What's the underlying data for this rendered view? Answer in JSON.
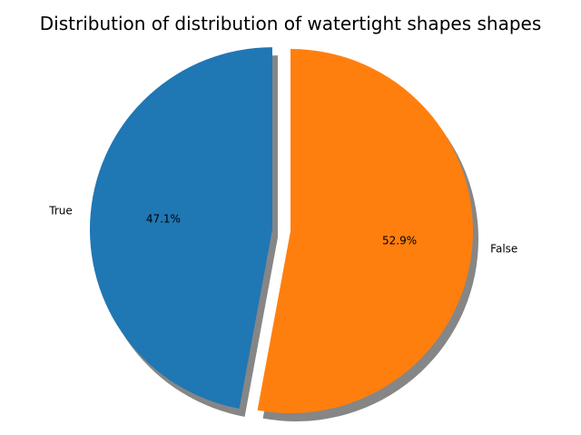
{
  "chart_data": {
    "type": "pie",
    "title": "Distribution of distribution of watertight shapes shapes",
    "categories": [
      "True",
      "False"
    ],
    "values": [
      47.1,
      52.9
    ],
    "percent_labels": [
      "47.1%",
      "52.9%"
    ],
    "colors": [
      "#1f77b4",
      "#ff7f0e"
    ],
    "shadow": true,
    "exploded": [
      "True"
    ],
    "start_angle_deg": 90,
    "direction": "counterclockwise"
  }
}
